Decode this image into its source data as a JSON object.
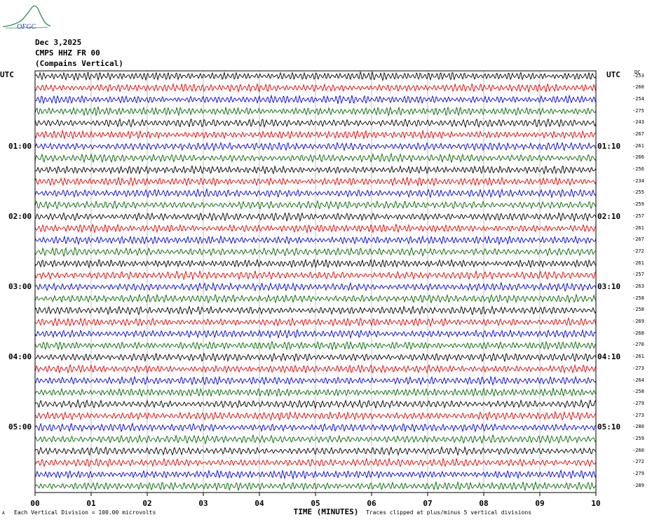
{
  "logo": {
    "text": "OFGC",
    "icon": "seismic-peak-logo-icon",
    "color": "#2e8b57"
  },
  "header": {
    "date": "Dec 3,2025",
    "station": "CMPS HHZ FR 00",
    "location": "(Compains Vertical)"
  },
  "axis": {
    "left_label": "UTC",
    "right_label": "UTC",
    "dc_label": "DC",
    "xlabel": "TIME (MINUTES)",
    "xticks": [
      "00",
      "01",
      "02",
      "03",
      "04",
      "05",
      "06",
      "07",
      "08",
      "09",
      "10"
    ]
  },
  "footer": {
    "scale_mark": "A",
    "scale_note": "Each Vertical Division =  100.00 microvolts",
    "clip_note": "Traces clipped at plus/minus 5 vertical divisions"
  },
  "chart_data": {
    "type": "line",
    "title": "",
    "xlabel": "TIME (MINUTES)",
    "xlim": [
      0,
      10
    ],
    "trace_colors": [
      "#000000",
      "#dd0000",
      "#0000cc",
      "#006600"
    ],
    "left_hour_labels": [
      {
        "trace": 6,
        "label": "01:00"
      },
      {
        "trace": 12,
        "label": "02:00"
      },
      {
        "trace": 18,
        "label": "03:00"
      },
      {
        "trace": 24,
        "label": "04:00"
      },
      {
        "trace": 30,
        "label": "05:00"
      }
    ],
    "right_hour_labels": [
      {
        "trace": 6,
        "label": "01:10"
      },
      {
        "trace": 12,
        "label": "02:10"
      },
      {
        "trace": 18,
        "label": "03:10"
      },
      {
        "trace": 24,
        "label": "04:10"
      },
      {
        "trace": 30,
        "label": "05:10"
      }
    ],
    "dc_offsets": [
      "-253",
      "-260",
      "-254",
      "-275",
      "-243",
      "-267",
      "-261",
      "-266",
      "-256",
      "-234",
      "-255",
      "-259",
      "-257",
      "-261",
      "-267",
      "-272",
      "-261",
      "-257",
      "-263",
      "-258",
      "-258",
      "-269",
      "-268",
      "-270",
      "-261",
      "-273",
      "-264",
      "-258",
      "-279",
      "-273",
      "-280",
      "-259",
      "-260",
      "-272",
      "-279",
      "-289"
    ]
  }
}
